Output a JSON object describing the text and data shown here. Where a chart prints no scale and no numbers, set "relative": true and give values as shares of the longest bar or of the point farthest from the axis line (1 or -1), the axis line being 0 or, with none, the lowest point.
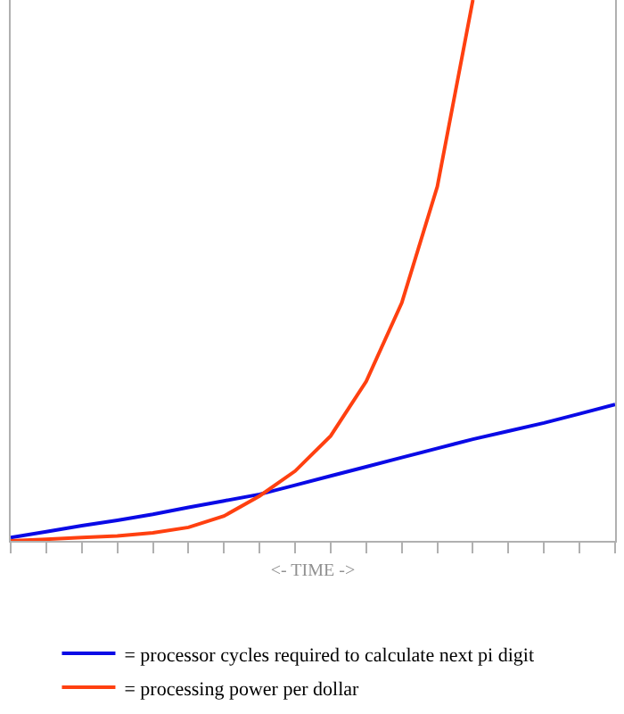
{
  "chart_data": {
    "type": "line",
    "relative": true,
    "xlabel": "<- TIME ->",
    "categories": [
      null,
      null,
      null,
      null,
      null,
      null,
      null,
      null,
      null,
      null,
      null,
      null,
      null,
      null,
      null,
      null,
      null,
      null
    ],
    "series": [
      {
        "name": "= processor cycles required to calculate next pi digit",
        "color": "#0a0ae6",
        "values": [
          0.006,
          0.017,
          0.028,
          0.038,
          0.049,
          0.062,
          0.074,
          0.086,
          0.103,
          0.12,
          0.137,
          0.154,
          0.171,
          0.188,
          0.203,
          0.218,
          0.235,
          0.252
        ]
      },
      {
        "name": "= processing power per dollar",
        "color": "#ff4010",
        "values": [
          0,
          0.003,
          0.006,
          0.009,
          0.015,
          0.025,
          0.046,
          0.083,
          0.129,
          0.194,
          0.295,
          0.44,
          0.655,
          1,
          null,
          null,
          null,
          null
        ]
      }
    ],
    "grid": false,
    "legend": "bottom",
    "marker": "none",
    "line_style": "solid"
  }
}
